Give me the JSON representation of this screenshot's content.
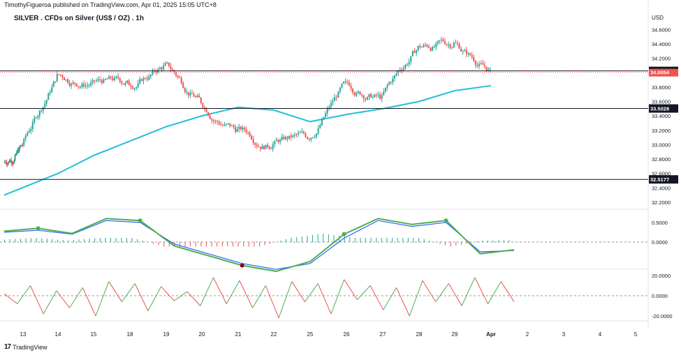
{
  "header": {
    "attribution": "TimothyFigueroa published on TradingView.com, Apr 01, 2025 15:05 UTC+8",
    "title": "SILVER . CFDs on Silver (US$ / OZ) . 1h",
    "currency": "USD"
  },
  "footer": {
    "brand": "TradingView"
  },
  "colors": {
    "up": "#26a69a",
    "down": "#ef5350",
    "ma": "#22c1d6",
    "level": "#131722",
    "osc_green": "#4caf50",
    "osc_dark": "#8b0000",
    "osc_blue": "#2962ff"
  },
  "chart_data": [
    {
      "type": "candlestick",
      "title": "SILVER . CFDs on Silver (US$ / OZ) . 1h",
      "x_tick_labels": [
        "13",
        "14",
        "15",
        "18",
        "19",
        "20",
        "21",
        "22",
        "25",
        "26",
        "27",
        "28",
        "29",
        "Apr",
        "2",
        "3",
        "4",
        "5"
      ],
      "y_tick_labels": [
        "34.6000",
        "34.4000",
        "34.2000",
        "33.8000",
        "33.6000",
        "33.4000",
        "33.2000",
        "33.0000",
        "32.8000",
        "32.6000",
        "32.4000",
        "32.2000"
      ],
      "ylim": [
        32.2,
        34.7
      ],
      "ohlc_approx": {
        "day_labels": [
          "13",
          "14",
          "15",
          "18",
          "19",
          "20",
          "21",
          "22",
          "25",
          "26",
          "27",
          "28",
          "29",
          "Apr"
        ],
        "closes_by_day_end": [
          33.0,
          33.95,
          33.85,
          33.85,
          34.1,
          33.6,
          33.2,
          33.0,
          33.1,
          33.85,
          33.65,
          34.35,
          34.4,
          34.02
        ]
      },
      "moving_average": {
        "values_by_day": [
          32.3,
          32.6,
          32.85,
          33.05,
          33.25,
          33.4,
          33.52,
          33.48,
          33.32,
          33.42,
          33.5,
          33.6,
          33.75,
          33.82
        ]
      },
      "horizontal_levels": [
        {
          "value": 34.0252,
          "label": "34.0252"
        },
        {
          "value": 33.5028,
          "label": "33.5028"
        },
        {
          "value": 32.5177,
          "label": "32.5177"
        }
      ],
      "last_price": {
        "value": 34.0054,
        "label": "34.0054"
      }
    },
    {
      "type": "line",
      "name": "oscillator",
      "y_tick_labels": [
        "0.5000",
        "0.0000"
      ],
      "series": [
        {
          "name": "fast",
          "values": [
            0.28,
            0.35,
            0.22,
            0.6,
            0.55,
            -0.1,
            -0.35,
            -0.6,
            -0.75,
            -0.5,
            0.2,
            0.6,
            0.45,
            0.55,
            -0.3,
            -0.2
          ]
        },
        {
          "name": "slow",
          "values": [
            0.25,
            0.3,
            0.2,
            0.55,
            0.5,
            -0.05,
            -0.3,
            -0.55,
            -0.7,
            -0.55,
            0.1,
            0.55,
            0.4,
            0.5,
            -0.25,
            -0.22
          ]
        }
      ]
    },
    {
      "type": "line",
      "name": "momentum",
      "y_tick_labels": [
        "20.0000",
        "0.0000",
        "-20.0000"
      ],
      "values": [
        2,
        -8,
        10,
        -18,
        5,
        -12,
        8,
        -20,
        14,
        -6,
        12,
        -15,
        9,
        -5,
        4,
        -10,
        18,
        -8,
        15,
        -12,
        10,
        -22,
        14,
        -6,
        12,
        -18,
        16,
        -4,
        10,
        -14,
        8,
        -20,
        15,
        -6,
        12,
        -10,
        18,
        -8,
        14,
        -6
      ]
    }
  ]
}
